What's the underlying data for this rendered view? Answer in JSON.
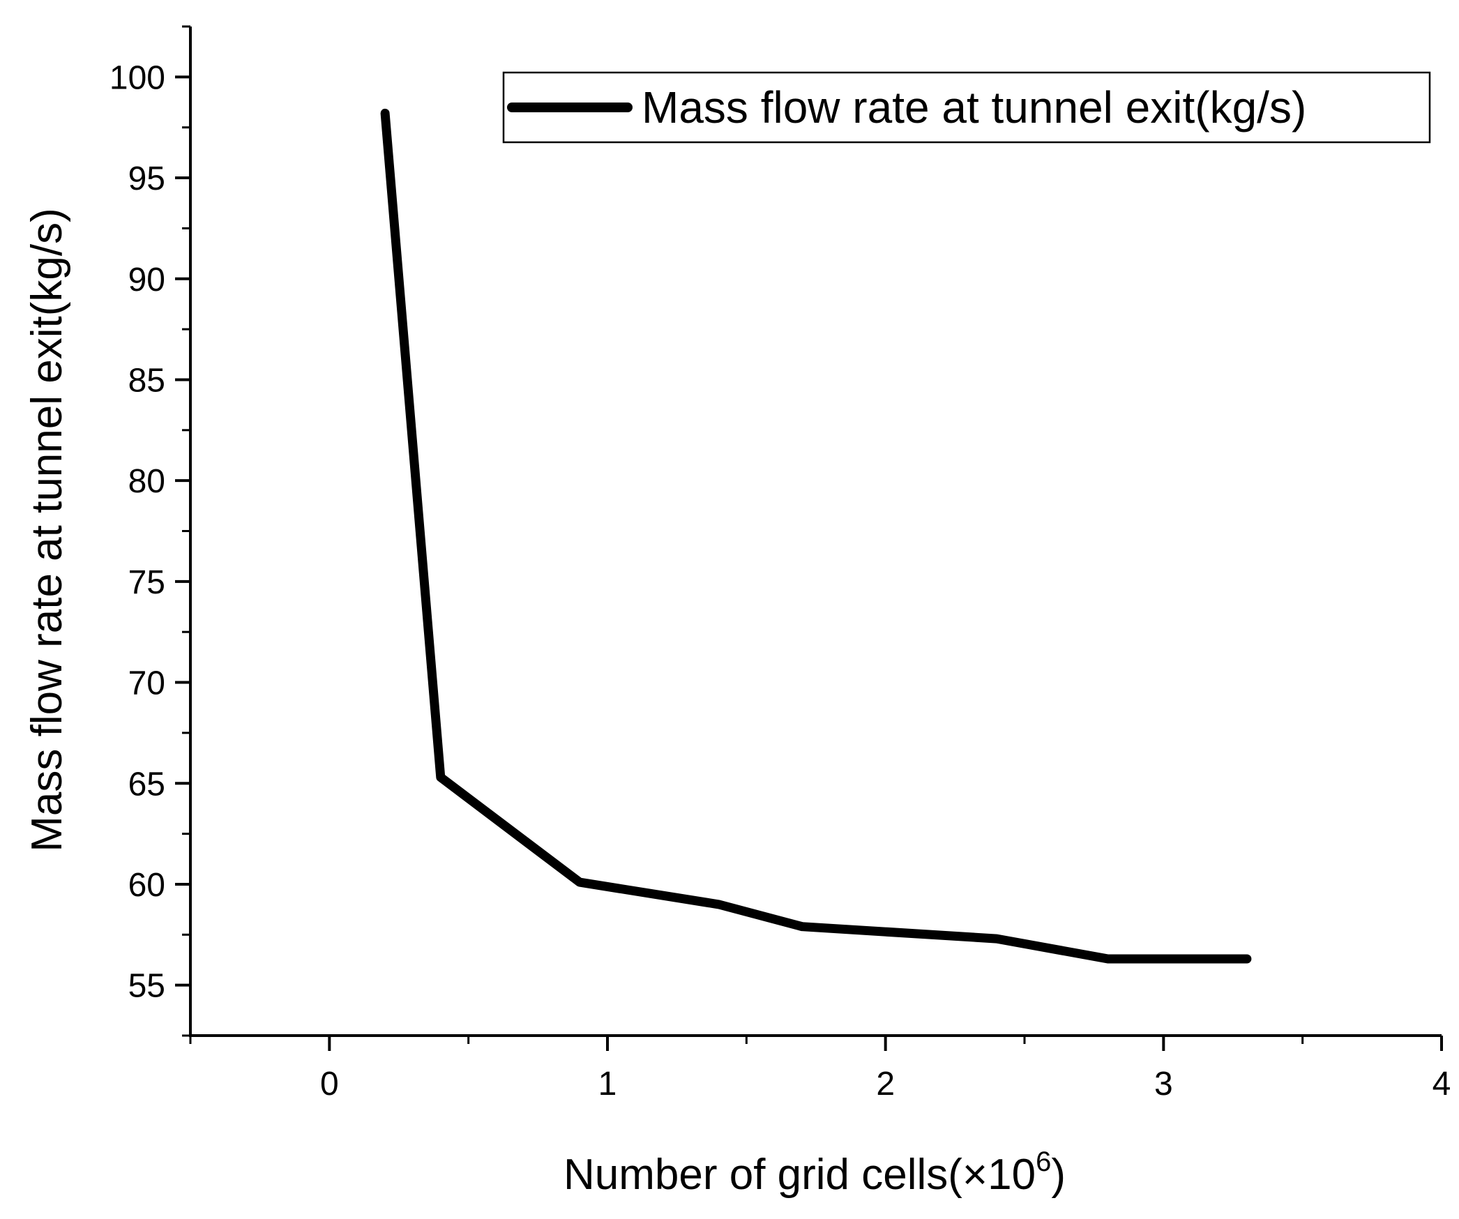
{
  "chart_data": {
    "type": "line",
    "title": "",
    "xlabel": "Number of grid cells(×10",
    "xlabel_superscript": "6",
    "xlabel_suffix": ")",
    "ylabel": "Mass flow rate at tunnel exit(kg/s)",
    "xlim": [
      -0.5,
      4
    ],
    "ylim": [
      52.5,
      102.5
    ],
    "xticks": [
      0,
      1,
      2,
      3,
      4
    ],
    "yticks": [
      55,
      60,
      65,
      70,
      75,
      80,
      85,
      90,
      95,
      100
    ],
    "xtick_labels": [
      "0",
      "1",
      "2",
      "3",
      "4"
    ],
    "ytick_labels": [
      "55",
      "60",
      "65",
      "70",
      "75",
      "80",
      "85",
      "90",
      "95",
      "100"
    ],
    "grid": false,
    "legend_position": "top-right",
    "series": [
      {
        "name": "Mass flow rate at tunnel exit(kg/s)",
        "color": "#000000",
        "x": [
          0.2,
          0.4,
          0.9,
          1.4,
          1.7,
          2.4,
          2.8,
          3.3
        ],
        "y": [
          98.2,
          65.3,
          60.1,
          59.0,
          57.9,
          57.3,
          56.3,
          56.3
        ]
      }
    ]
  }
}
